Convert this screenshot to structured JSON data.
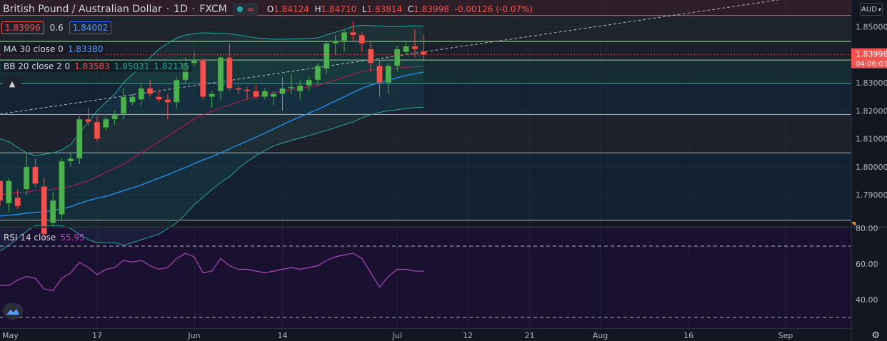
{
  "header": {
    "title": "British Pound / Australian Dollar",
    "interval": "1D",
    "source": "FXCM",
    "ohlc": {
      "o_label": "O",
      "o": "1.84124",
      "h_label": "H",
      "h": "1.84710",
      "l_label": "L",
      "l": "1.83814",
      "c_label": "C",
      "c": "1.83998",
      "change": "-0.00126 (-0.07%)"
    },
    "pill_symbol": "≈"
  },
  "price_row": {
    "bid": "1.83996",
    "spread": "0.6",
    "ask": "1.84002"
  },
  "indicators": {
    "ma": {
      "name": "MA 30 close 0",
      "value": "1.83380"
    },
    "bb": {
      "name": "BB 20 close 2 0",
      "basis": "1.83583",
      "upper": "1.85031",
      "lower": "1.82135"
    },
    "rsi": {
      "name": "RSI 14 close",
      "value": "55.95"
    }
  },
  "currency_button": "AUD",
  "collapse_icon": "chevron-up-icon",
  "chart_data": {
    "type": "candlestick",
    "symbol": "GBPAUD",
    "current_price": "1.83998",
    "countdown": "04:06:01",
    "y_ticks": [
      "1.85000",
      "1.84000",
      "1.83000",
      "1.82000",
      "1.81000",
      "1.80000",
      "1.79000"
    ],
    "y_range": [
      1.7786,
      1.8595
    ],
    "rsi_ticks": [
      "80.00",
      "60.00",
      "40.00"
    ],
    "rsi_range": [
      24,
      80
    ],
    "rsi_bands": [
      70,
      30
    ],
    "x_ticks": [
      {
        "label": "May",
        "i": -1.2
      },
      {
        "label": "17",
        "i": 11
      },
      {
        "label": "Jun",
        "i": 22
      },
      {
        "label": "14",
        "i": 32
      },
      {
        "label": "Jul",
        "i": 45
      },
      {
        "label": "12",
        "i": 53
      },
      {
        "label": "21",
        "i": 60
      },
      {
        "label": "Aug",
        "i": 68
      },
      {
        "label": "16",
        "i": 78
      },
      {
        "label": "Sep",
        "i": 89
      }
    ],
    "candles": [
      [
        1.795,
        1.795,
        1.786,
        1.788
      ],
      [
        1.787,
        1.796,
        1.784,
        1.795
      ],
      [
        1.789,
        1.792,
        1.785,
        1.786
      ],
      [
        1.792,
        1.805,
        1.79,
        1.8
      ],
      [
        1.8,
        1.803,
        1.793,
        1.794
      ],
      [
        1.793,
        1.796,
        1.774,
        1.776
      ],
      [
        1.78,
        1.791,
        1.779,
        1.788
      ],
      [
        1.783,
        1.803,
        1.781,
        1.802
      ],
      [
        1.802,
        1.805,
        1.8,
        1.803
      ],
      [
        1.803,
        1.818,
        1.801,
        1.817
      ],
      [
        1.817,
        1.821,
        1.815,
        1.816
      ],
      [
        1.816,
        1.818,
        1.809,
        1.81
      ],
      [
        1.814,
        1.818,
        1.813,
        1.817
      ],
      [
        1.817,
        1.82,
        1.815,
        1.8185
      ],
      [
        1.819,
        1.828,
        1.817,
        1.825
      ],
      [
        1.823,
        1.826,
        1.822,
        1.825
      ],
      [
        1.824,
        1.83,
        1.822,
        1.828
      ],
      [
        1.828,
        1.831,
        1.825,
        1.826
      ],
      [
        1.825,
        1.827,
        1.823,
        1.824
      ],
      [
        1.824,
        1.826,
        1.817,
        1.823
      ],
      [
        1.823,
        1.832,
        1.821,
        1.831
      ],
      [
        1.831,
        1.839,
        1.83,
        1.837
      ],
      [
        1.837,
        1.841,
        1.836,
        1.838
      ],
      [
        1.838,
        1.8385,
        1.824,
        1.825
      ],
      [
        1.825,
        1.827,
        1.821,
        1.826
      ],
      [
        1.827,
        1.84,
        1.824,
        1.839
      ],
      [
        1.839,
        1.844,
        1.827,
        1.828
      ],
      [
        1.828,
        1.829,
        1.826,
        1.8275
      ],
      [
        1.8275,
        1.8285,
        1.824,
        1.827
      ],
      [
        1.827,
        1.829,
        1.824,
        1.825
      ],
      [
        1.825,
        1.828,
        1.824,
        1.827
      ],
      [
        1.825,
        1.827,
        1.822,
        1.826
      ],
      [
        1.826,
        1.832,
        1.82,
        1.828
      ],
      [
        1.828,
        1.833,
        1.826,
        1.8285
      ],
      [
        1.827,
        1.831,
        1.824,
        1.829
      ],
      [
        1.829,
        1.832,
        1.827,
        1.831
      ],
      [
        1.831,
        1.837,
        1.829,
        1.836
      ],
      [
        1.835,
        1.845,
        1.833,
        1.844
      ],
      [
        1.844,
        1.847,
        1.84,
        1.845
      ],
      [
        1.845,
        1.849,
        1.841,
        1.848
      ],
      [
        1.848,
        1.852,
        1.845,
        1.847
      ],
      [
        1.847,
        1.848,
        1.841,
        1.844
      ],
      [
        1.842,
        1.845,
        1.834,
        1.837
      ],
      [
        1.836,
        1.838,
        1.825,
        1.83
      ],
      [
        1.83,
        1.837,
        1.826,
        1.836
      ],
      [
        1.836,
        1.843,
        1.834,
        1.842
      ],
      [
        1.841,
        1.845,
        1.84,
        1.843
      ],
      [
        1.843,
        1.849,
        1.839,
        1.842
      ],
      [
        1.8412,
        1.8471,
        1.8381,
        1.84
      ]
    ],
    "ma30": [
      1.7825,
      1.7828,
      1.783,
      1.7835,
      1.7838,
      1.784,
      1.7845,
      1.785,
      1.7858,
      1.787,
      1.788,
      1.7888,
      1.7895,
      1.7905,
      1.7915,
      1.7925,
      1.7935,
      1.7948,
      1.796,
      1.7972,
      1.7985,
      1.7998,
      1.8012,
      1.8025,
      1.8036,
      1.805,
      1.8064,
      1.8078,
      1.8092,
      1.8106,
      1.812,
      1.8135,
      1.815,
      1.8165,
      1.8178,
      1.8192,
      1.8205,
      1.822,
      1.8235,
      1.825,
      1.8265,
      1.828,
      1.8292,
      1.83,
      1.8308,
      1.8318,
      1.8326,
      1.8332,
      1.8338
    ],
    "bb_upper": [
      1.81,
      1.809,
      1.807,
      1.805,
      1.804,
      1.8045,
      1.805,
      1.806,
      1.808,
      1.812,
      1.816,
      1.82,
      1.823,
      1.826,
      1.83,
      1.833,
      1.836,
      1.839,
      1.842,
      1.844,
      1.846,
      1.847,
      1.8475,
      1.8478,
      1.8477,
      1.8476,
      1.8475,
      1.847,
      1.8465,
      1.846,
      1.8458,
      1.8455,
      1.8455,
      1.8456,
      1.8457,
      1.8458,
      1.846,
      1.847,
      1.848,
      1.849,
      1.85,
      1.8505,
      1.8504,
      1.8502,
      1.85,
      1.85,
      1.8502,
      1.8503,
      1.8503
    ],
    "bb_basis": [
      1.79,
      1.7905,
      1.7908,
      1.791,
      1.7915,
      1.7918,
      1.792,
      1.7925,
      1.793,
      1.794,
      1.795,
      1.7965,
      1.798,
      1.7995,
      1.801,
      1.803,
      1.805,
      1.807,
      1.809,
      1.811,
      1.813,
      1.815,
      1.817,
      1.8185,
      1.8198,
      1.821,
      1.822,
      1.8232,
      1.8242,
      1.825,
      1.8258,
      1.8265,
      1.827,
      1.8275,
      1.828,
      1.8285,
      1.829,
      1.83,
      1.831,
      1.832,
      1.833,
      1.834,
      1.8345,
      1.8348,
      1.835,
      1.8352,
      1.8355,
      1.8357,
      1.8358
    ],
    "bb_lower": [
      1.77,
      1.772,
      1.7745,
      1.777,
      1.779,
      1.7791,
      1.779,
      1.779,
      1.778,
      1.776,
      1.774,
      1.773,
      1.773,
      1.773,
      1.772,
      1.773,
      1.774,
      1.775,
      1.776,
      1.778,
      1.78,
      1.783,
      1.7865,
      1.7892,
      1.7919,
      1.7944,
      1.7965,
      1.7994,
      1.8019,
      1.804,
      1.8058,
      1.8075,
      1.8085,
      1.8094,
      1.8103,
      1.8112,
      1.812,
      1.813,
      1.814,
      1.815,
      1.816,
      1.8175,
      1.8186,
      1.8194,
      1.82,
      1.8204,
      1.8208,
      1.8211,
      1.8213
    ],
    "rsi": [
      48,
      48,
      51,
      53,
      52,
      46,
      45,
      52,
      55,
      61,
      58,
      54,
      57,
      58,
      62,
      61,
      62,
      59,
      57,
      58,
      63,
      66,
      64,
      55,
      56,
      63,
      59,
      57,
      57,
      56,
      55,
      56,
      57,
      58,
      57,
      58,
      59,
      62,
      64,
      65,
      66,
      63,
      55,
      47,
      53,
      57,
      57,
      56,
      55.95
    ],
    "trendline": [
      [
        0,
        1.8188
      ],
      [
        100,
        1.865
      ]
    ],
    "hlines": [
      {
        "y": 1.854,
        "color": "#ef5350"
      },
      {
        "y": 1.8447,
        "color": "#a5d6a7"
      },
      {
        "y": 1.8381,
        "color": "#a5d6a7"
      },
      {
        "y": 1.8297,
        "color": "#26a69a"
      },
      {
        "y": 1.8187,
        "color": "#b2b5be"
      },
      {
        "y": 1.805,
        "color": "#b2b5be"
      },
      {
        "y": 1.781,
        "color": "#b2b5be"
      }
    ],
    "zones": [
      {
        "from": 1.854,
        "to": 1.8595,
        "color": "#ef5350",
        "alpha": 0.12
      },
      {
        "from": 1.8447,
        "to": 1.854,
        "color": "#a5d6a7",
        "alpha": 0.07
      },
      {
        "from": 1.8381,
        "to": 1.8447,
        "color": "#a5d6a7",
        "alpha": 0.05
      },
      {
        "from": 1.8297,
        "to": 1.8381,
        "color": "#26a69a",
        "alpha": 0.15
      },
      {
        "from": 1.8187,
        "to": 1.8297,
        "color": "#2196f3",
        "alpha": 0.09
      },
      {
        "from": 1.805,
        "to": 1.8187,
        "color": "#787b86",
        "alpha": 0.1
      },
      {
        "from": 1.781,
        "to": 1.805,
        "color": "#2196f3",
        "alpha": 0.08
      }
    ],
    "colors": {
      "up": "#26a69a",
      "up_body": "#4caf50",
      "down": "#ef5350",
      "ma": "#2196f3",
      "bb_upper": "#26a69a",
      "bb_basis": "#c2185b",
      "bb_lower": "#26a69a",
      "rsi": "#ab47bc",
      "trend": "#b2b5be"
    }
  }
}
